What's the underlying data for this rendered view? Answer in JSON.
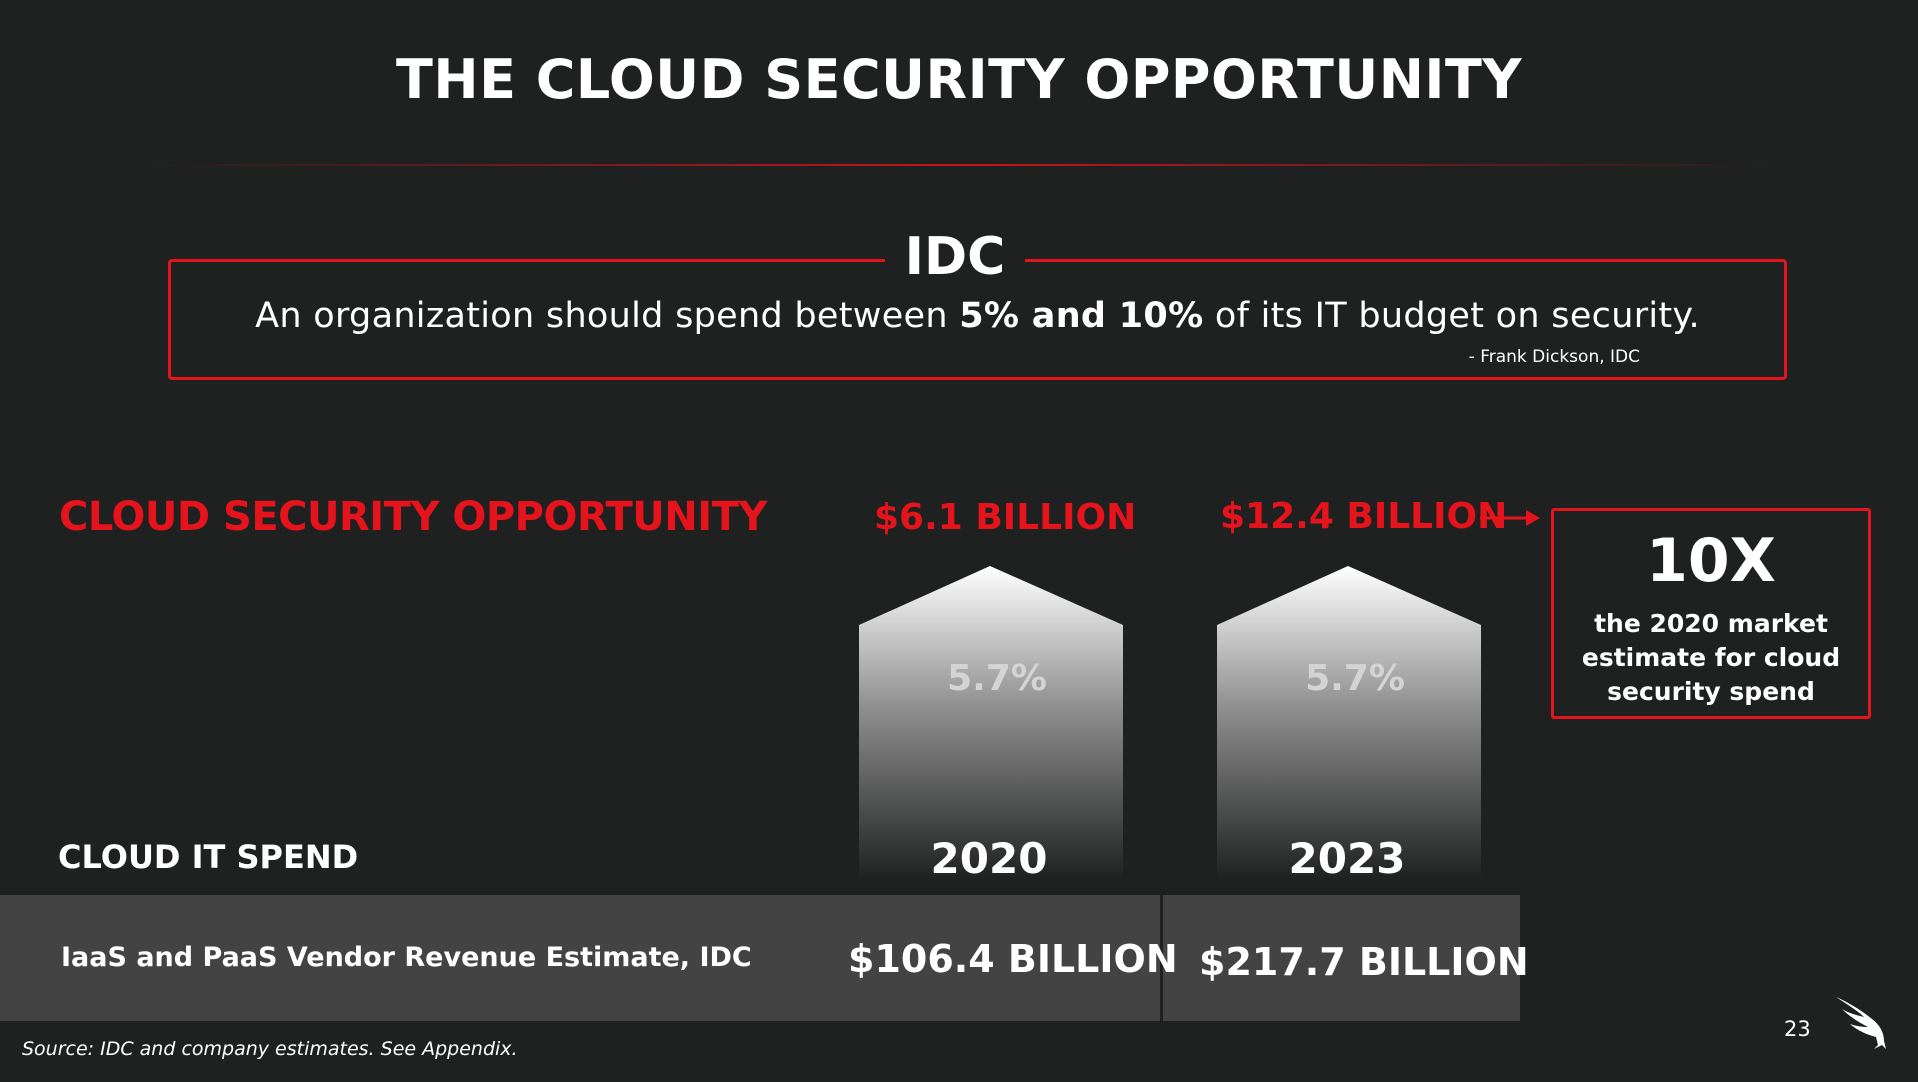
{
  "slide": {
    "title": "THE CLOUD SECURITY OPPORTUNITY",
    "page_number": "23",
    "source": "Source: IDC and company estimates.  See Appendix."
  },
  "idc_quote": {
    "label": "IDC",
    "text_pre": "An organization should spend between ",
    "text_bold": "5% and 10%",
    "text_post": " of its IT budget on security.",
    "attribution": "- Frank Dickson, IDC"
  },
  "opportunity": {
    "label": "CLOUD SECURITY OPPORTUNITY",
    "value_2020": "$6.1 BILLION",
    "value_2023": "$12.4 BILLION"
  },
  "multiplier": {
    "value": "10X",
    "caption": "the 2020 market estimate for cloud security spend"
  },
  "columns": [
    {
      "year": "2020",
      "percent": "5.7%"
    },
    {
      "year": "2023",
      "percent": "5.7%"
    }
  ],
  "cloud_it_spend": {
    "label": "CLOUD IT SPEND",
    "row_label": "IaaS and PaaS Vendor Revenue Estimate, IDC",
    "value_2020": "$106.4 BILLION",
    "value_2023": "$217.7 BILLION"
  },
  "colors": {
    "accent": "#e5131b",
    "background": "#1f2020",
    "band": "#434343"
  },
  "icons": [
    "arrow-right-icon",
    "falcon-logo-icon"
  ]
}
